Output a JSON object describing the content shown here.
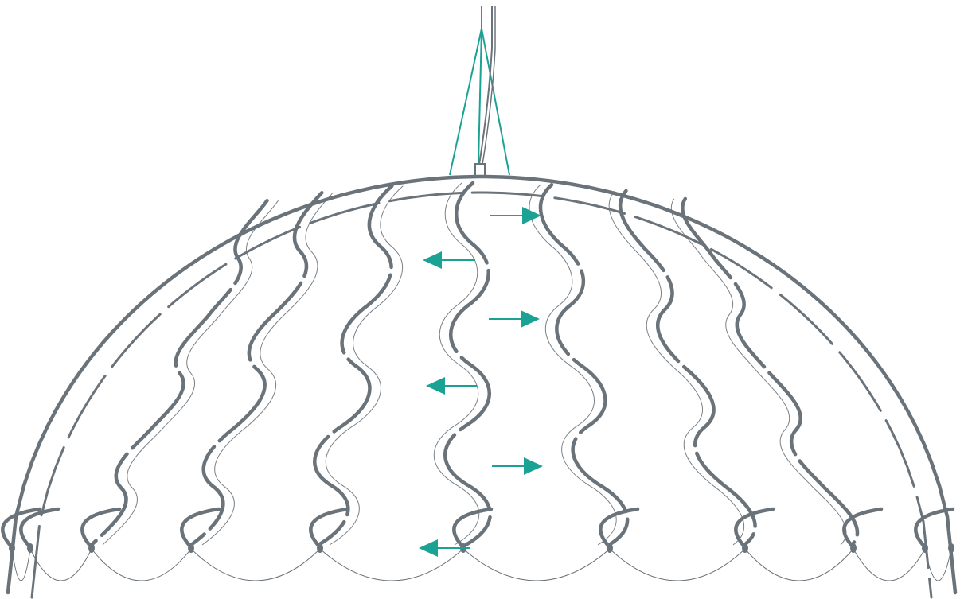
{
  "diagram": {
    "colors": {
      "frame": "#6b737a",
      "frame_thin": "#6b737a",
      "cable": "#1aa394",
      "arrow": "#1aa394",
      "background": "#ffffff"
    },
    "icons": {
      "arrow_right": "arrow-right-icon",
      "arrow_left": "arrow-left-icon"
    },
    "arrow_sequence": [
      "right",
      "left",
      "right",
      "left",
      "right",
      "left"
    ]
  }
}
